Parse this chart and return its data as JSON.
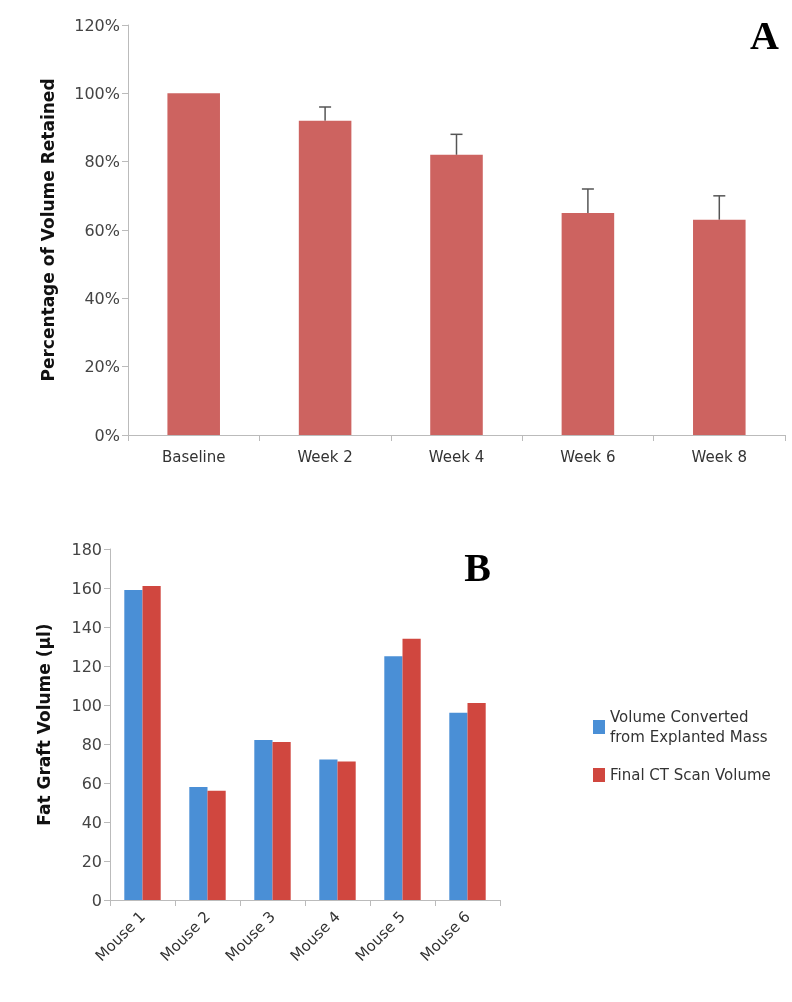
{
  "chart_data": [
    {
      "type": "bar",
      "title": "A",
      "ylabel": "Percentage of Volume Retained",
      "categories": [
        "Baseline",
        "Week 2",
        "Week 4",
        "Week 6",
        "Week 8"
      ],
      "values": [
        100,
        92,
        82,
        65,
        63
      ],
      "color": "#cd6360",
      "errors": [
        null,
        [
          92,
          96
        ],
        [
          82,
          88
        ],
        [
          65,
          72
        ],
        [
          63,
          70
        ]
      ],
      "ylim": [
        0,
        120
      ],
      "yticks": [
        {
          "value": 0,
          "label": "0%"
        },
        {
          "value": 20,
          "label": "20%"
        },
        {
          "value": 40,
          "label": "40%"
        },
        {
          "value": 60,
          "label": "60%"
        },
        {
          "value": 80,
          "label": "80%"
        },
        {
          "value": 100,
          "label": "100%"
        },
        {
          "value": 120,
          "label": "120%"
        }
      ]
    },
    {
      "type": "bar",
      "title": "B",
      "ylabel": "Fat Graft Volume (µl)",
      "categories": [
        "Mouse 1",
        "Mouse 2",
        "Mouse 3",
        "Mouse 4",
        "Mouse 5",
        "Mouse 6"
      ],
      "series": [
        {
          "name": "Volume Converted from Explanted Mass",
          "color": "#4a8fd6",
          "values": [
            159,
            58,
            82,
            72,
            125,
            96
          ]
        },
        {
          "name": "Final CT Scan Volume",
          "color": "#d0473f",
          "values": [
            161,
            56,
            81,
            71,
            134,
            101
          ]
        }
      ],
      "ylim": [
        0,
        180
      ],
      "yticks": [
        0,
        20,
        40,
        60,
        80,
        100,
        120,
        140,
        160,
        180
      ],
      "legend": "right"
    }
  ]
}
